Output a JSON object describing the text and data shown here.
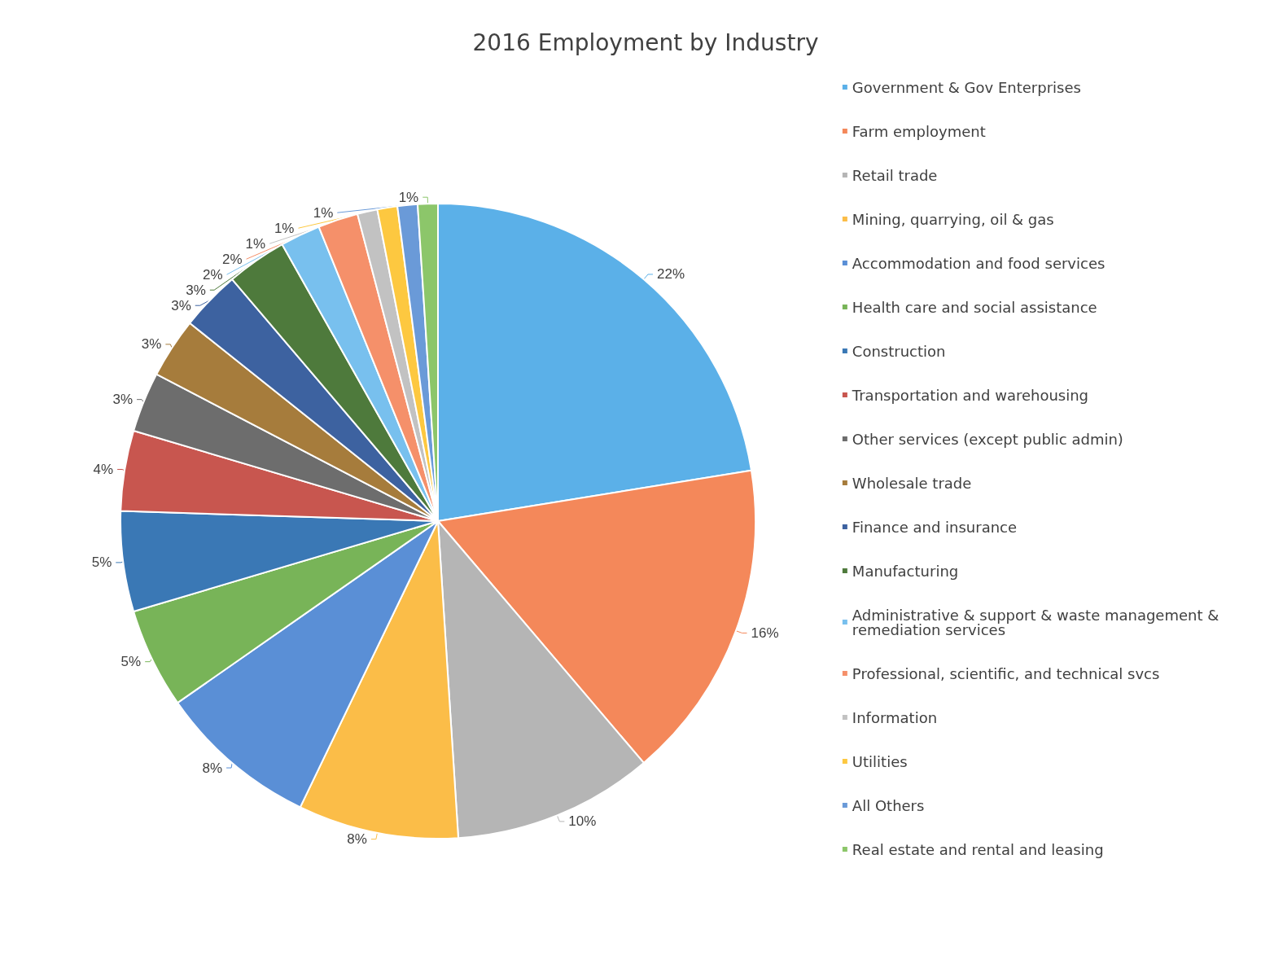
{
  "chart_data": {
    "type": "pie",
    "title": "2016 Employment by Industry",
    "categories": [
      "Government & Gov Enterprises",
      "Farm employment",
      "Retail trade",
      "Mining, quarrying, oil & gas",
      "Accommodation and food services",
      "Health care and social assistance",
      "Construction",
      "Transportation and warehousing",
      "Other services (except public admin)",
      "Wholesale trade",
      "Finance and insurance",
      "Manufacturing",
      "Administrative & support & waste management & remediation services",
      "Professional, scientific, and technical svcs",
      "Information",
      "Utilities",
      "All Others",
      "Real estate and rental and leasing"
    ],
    "values": [
      22,
      16,
      10,
      8,
      8,
      5,
      5,
      4,
      3,
      3,
      3,
      3,
      2,
      2,
      1,
      1,
      1,
      1
    ],
    "value_labels": [
      "22%",
      "16%",
      "10%",
      "8%",
      "8%",
      "5%",
      "5%",
      "4%",
      "3%",
      "3%",
      "3%",
      "3%",
      "2%",
      "2%",
      "1%",
      "1%",
      "1%",
      "1%"
    ],
    "colors": [
      "#5bb0e8",
      "#f4885a",
      "#b5b5b5",
      "#fbbd48",
      "#5a8fd6",
      "#78b458",
      "#3a78b5",
      "#c8564f",
      "#6d6d6d",
      "#a67c3c",
      "#3d62a0",
      "#4e7a3c",
      "#78c0ee",
      "#f5906a",
      "#c2c2c2",
      "#fdc840",
      "#6a9ad8",
      "#8cc66a"
    ],
    "legend": "right"
  }
}
